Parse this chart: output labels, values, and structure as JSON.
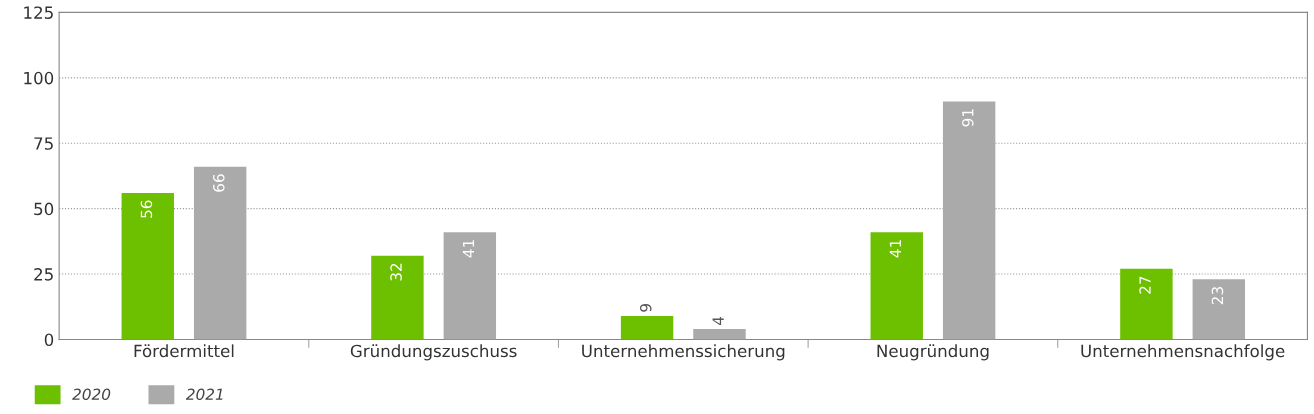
{
  "chart_data": {
    "type": "bar",
    "categories": [
      "Fördermittel",
      "Gründungszuschuss",
      "Unternehmenssicherung",
      "Neugründung",
      "Unternehmensnachfolge"
    ],
    "series": [
      {
        "name": "2020",
        "color": "#6cc000",
        "values": [
          56,
          32,
          9,
          41,
          27
        ]
      },
      {
        "name": "2021",
        "color": "#aaaaaa",
        "values": [
          66,
          41,
          4,
          91,
          23
        ]
      }
    ],
    "ylim": [
      0,
      125
    ],
    "yticks": [
      0,
      25,
      50,
      75,
      100,
      125
    ],
    "grid": "y",
    "legend": "bottom left",
    "data_labels": true
  }
}
